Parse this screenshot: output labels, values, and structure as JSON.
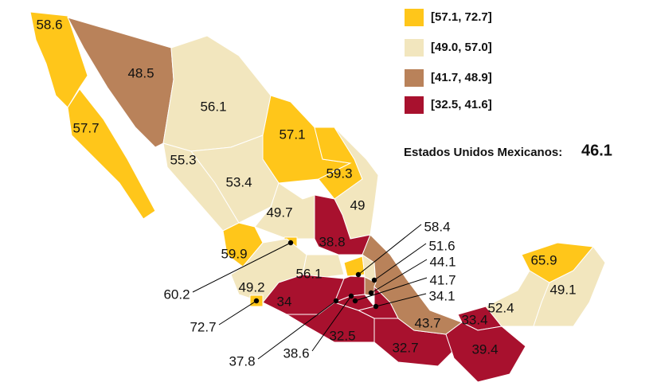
{
  "legend": {
    "items": [
      {
        "label": "[57.1, 72.7]",
        "color": "#ffc61a"
      },
      {
        "label": "[49.0, 57.0]",
        "color": "#f2e6be"
      },
      {
        "label": "[41.7, 48.9]",
        "color": "#b9825a"
      },
      {
        "label": "[32.5, 41.6]",
        "color": "#a8112e"
      }
    ]
  },
  "national": {
    "label": "Estados Unidos Mexicanos:",
    "value": 46.1
  },
  "regions": [
    {
      "value": 58.6,
      "color": "#ffc61a"
    },
    {
      "value": 48.5,
      "color": "#b9825a"
    },
    {
      "value": 56.1,
      "color": "#f2e6be"
    },
    {
      "value": 57.7,
      "color": "#ffc61a"
    },
    {
      "value": 57.1,
      "color": "#ffc61a"
    },
    {
      "value": 55.3,
      "color": "#f2e6be"
    },
    {
      "value": 59.3,
      "color": "#ffc61a"
    },
    {
      "value": 53.4,
      "color": "#f2e6be"
    },
    {
      "value": 49.7,
      "color": "#f2e6be"
    },
    {
      "value": 49.0,
      "color": "#f2e6be"
    },
    {
      "value": 38.8,
      "color": "#a8112e"
    },
    {
      "value": 59.9,
      "color": "#ffc61a"
    },
    {
      "value": 60.2,
      "color": "#ffc61a"
    },
    {
      "value": 49.2,
      "color": "#f2e6be"
    },
    {
      "value": 72.7,
      "color": "#ffc61a"
    },
    {
      "value": 56.1,
      "color": "#f2e6be"
    },
    {
      "value": 58.4,
      "color": "#ffc61a"
    },
    {
      "value": 51.6,
      "color": "#f2e6be"
    },
    {
      "value": 44.1,
      "color": "#b9825a"
    },
    {
      "value": 41.7,
      "color": "#b9825a"
    },
    {
      "value": 34.1,
      "color": "#a8112e"
    },
    {
      "value": 34.0,
      "color": "#a8112e"
    },
    {
      "value": 37.8,
      "color": "#a8112e"
    },
    {
      "value": 38.6,
      "color": "#a8112e"
    },
    {
      "value": 32.5,
      "color": "#a8112e"
    },
    {
      "value": 32.7,
      "color": "#a8112e"
    },
    {
      "value": 43.7,
      "color": "#b9825a"
    },
    {
      "value": 33.4,
      "color": "#a8112e"
    },
    {
      "value": 39.4,
      "color": "#a8112e"
    },
    {
      "value": 52.4,
      "color": "#f2e6be"
    },
    {
      "value": 65.9,
      "color": "#ffc61a"
    },
    {
      "value": 49.1,
      "color": "#f2e6be"
    }
  ]
}
